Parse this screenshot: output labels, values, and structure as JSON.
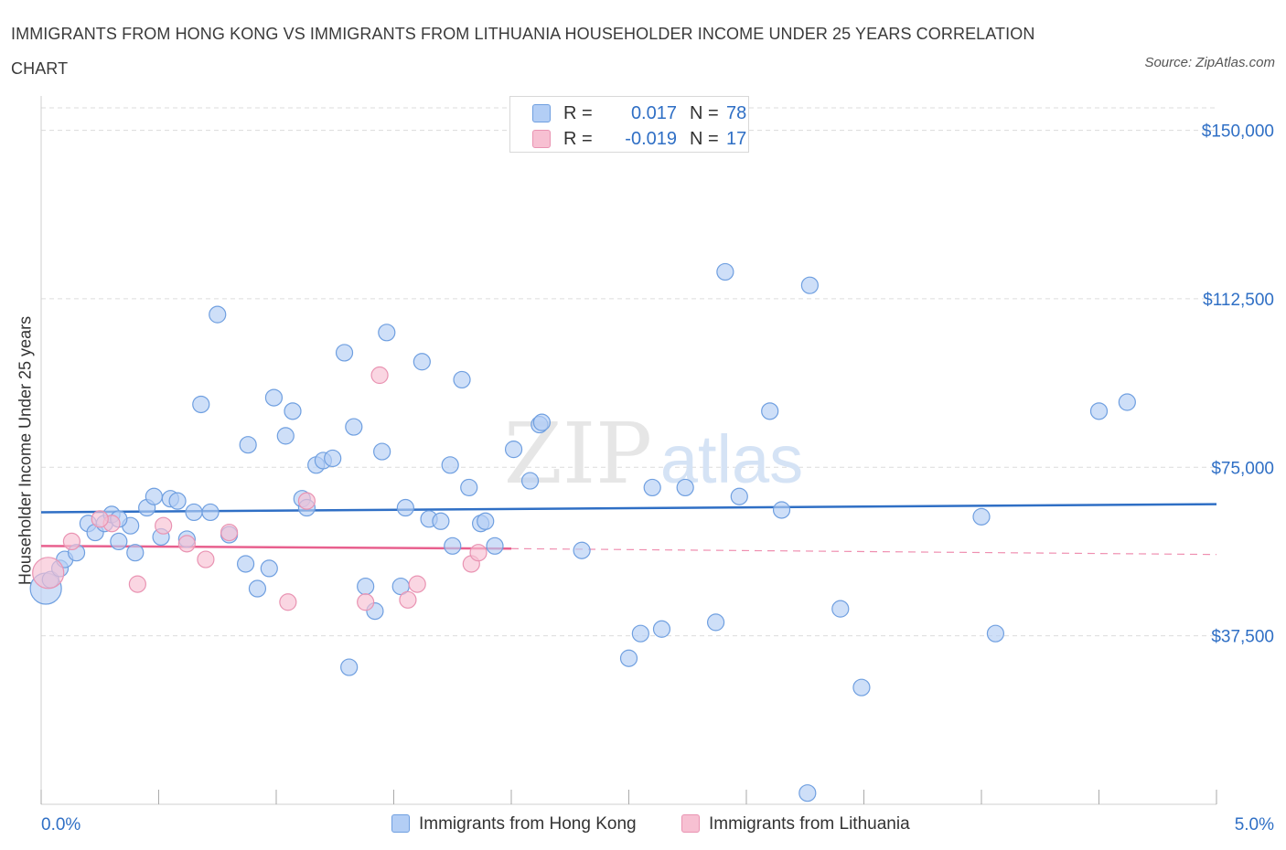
{
  "title": "IMMIGRANTS FROM HONG KONG VS IMMIGRANTS FROM LITHUANIA HOUSEHOLDER INCOME UNDER 25 YEARS CORRELATION CHART",
  "source": "Source: ZipAtlas.com",
  "watermark": {
    "zip": "ZIP",
    "atlas": "atlas"
  },
  "legend": {
    "hk": {
      "r_label": "R =",
      "r_value": "0.017",
      "n_label": "N =",
      "n_value": "78"
    },
    "lt": {
      "r_label": "R =",
      "r_value": "-0.019",
      "n_label": "N =",
      "n_value": "17"
    }
  },
  "colors": {
    "hk_fill": "#b3cef5",
    "hk_stroke": "#6f9fe0",
    "hk_line": "#2f6fc5",
    "lt_fill": "#f7c0d2",
    "lt_stroke": "#e993b2",
    "lt_line": "#e8608e",
    "axis_text": "#2f6fc5",
    "grid": "#dcdcdc"
  },
  "chart_data": {
    "type": "scatter",
    "title": "IMMIGRANTS FROM HONG KONG VS IMMIGRANTS FROM LITHUANIA HOUSEHOLDER INCOME UNDER 25 YEARS CORRELATION CHART",
    "xlabel": "",
    "ylabel": "Householder Income Under 25 years",
    "xlim": [
      0,
      5
    ],
    "ylim": [
      0,
      155000
    ],
    "x_tick_labels": [
      "0.0%",
      "5.0%"
    ],
    "y_ticks": [
      37500,
      75000,
      112500,
      150000
    ],
    "y_tick_labels": [
      "$37,500",
      "$75,000",
      "$112,500",
      "$150,000"
    ],
    "grid": true,
    "series": [
      {
        "name": "Immigrants from Hong Kong",
        "trend": [
          [
            0,
            65000
          ],
          [
            5,
            66800
          ]
        ],
        "points": [
          [
            0.02,
            48000,
            2
          ],
          [
            0.04,
            50000,
            1
          ],
          [
            0.08,
            52500,
            1
          ],
          [
            0.1,
            54500,
            1
          ],
          [
            0.15,
            56000,
            1
          ],
          [
            0.2,
            62500,
            1
          ],
          [
            0.23,
            60500,
            1
          ],
          [
            0.27,
            62500,
            1
          ],
          [
            0.3,
            64500,
            1
          ],
          [
            0.33,
            58500,
            1
          ],
          [
            0.38,
            62000,
            1
          ],
          [
            0.4,
            56000,
            1
          ],
          [
            0.45,
            66000,
            1
          ],
          [
            0.48,
            68500,
            1
          ],
          [
            0.51,
            59500,
            1
          ],
          [
            0.55,
            68000,
            1
          ],
          [
            0.58,
            67500,
            1
          ],
          [
            0.62,
            59000,
            1
          ],
          [
            0.65,
            65000,
            1
          ],
          [
            0.68,
            89000,
            1
          ],
          [
            0.72,
            65000,
            1
          ],
          [
            0.75,
            109000,
            1
          ],
          [
            0.8,
            60000,
            1
          ],
          [
            0.87,
            53500,
            1
          ],
          [
            0.88,
            80000,
            1
          ],
          [
            0.92,
            48000,
            1
          ],
          [
            0.97,
            52500,
            1
          ],
          [
            0.99,
            90500,
            1
          ],
          [
            1.04,
            82000,
            1
          ],
          [
            1.07,
            87500,
            1
          ],
          [
            1.11,
            68000,
            1
          ],
          [
            1.13,
            66000,
            1
          ],
          [
            1.17,
            75500,
            1
          ],
          [
            1.2,
            76500,
            1
          ],
          [
            1.24,
            77000,
            1
          ],
          [
            1.29,
            100500,
            1
          ],
          [
            1.33,
            84000,
            1
          ],
          [
            1.38,
            48500,
            1
          ],
          [
            1.42,
            43000,
            1
          ],
          [
            1.45,
            78500,
            1
          ],
          [
            1.47,
            105000,
            1
          ],
          [
            1.53,
            48500,
            1
          ],
          [
            1.55,
            66000,
            1
          ],
          [
            1.62,
            98500,
            1
          ],
          [
            1.65,
            63500,
            1
          ],
          [
            1.7,
            63000,
            1
          ],
          [
            1.74,
            75500,
            1
          ],
          [
            1.75,
            57500,
            1
          ],
          [
            1.79,
            94500,
            1
          ],
          [
            1.82,
            70500,
            1
          ],
          [
            1.87,
            62500,
            1
          ],
          [
            1.89,
            63000,
            1
          ],
          [
            1.93,
            57500,
            1
          ],
          [
            2.01,
            79000,
            1
          ],
          [
            2.08,
            72000,
            1
          ],
          [
            2.12,
            84500,
            1
          ],
          [
            2.13,
            85000,
            1
          ],
          [
            2.3,
            56500,
            1
          ],
          [
            2.5,
            32500,
            1
          ],
          [
            2.55,
            38000,
            1
          ],
          [
            2.6,
            70500,
            1
          ],
          [
            2.64,
            39000,
            1
          ],
          [
            2.74,
            70500,
            1
          ],
          [
            2.87,
            40500,
            1
          ],
          [
            2.91,
            118500,
            1
          ],
          [
            2.97,
            68500,
            1
          ],
          [
            3.1,
            87500,
            1
          ],
          [
            3.15,
            65500,
            1
          ],
          [
            3.26,
            2500,
            1
          ],
          [
            3.27,
            115500,
            1
          ],
          [
            3.4,
            43500,
            1
          ],
          [
            3.49,
            26000,
            1
          ],
          [
            4.0,
            64000,
            1
          ],
          [
            4.06,
            38000,
            1
          ],
          [
            4.5,
            87500,
            1
          ],
          [
            4.62,
            89500,
            1
          ],
          [
            1.31,
            30500,
            1
          ],
          [
            0.33,
            63500,
            1
          ]
        ]
      },
      {
        "name": "Immigrants from Lithuania",
        "trend": [
          [
            0,
            57500
          ],
          [
            2.0,
            56900
          ]
        ],
        "trend_extension": [
          [
            2.0,
            56900
          ],
          [
            5,
            55600
          ]
        ],
        "points": [
          [
            0.03,
            51500,
            2
          ],
          [
            0.13,
            58500,
            1
          ],
          [
            0.3,
            62500,
            1
          ],
          [
            0.41,
            49000,
            1
          ],
          [
            0.52,
            62000,
            1
          ],
          [
            0.62,
            58000,
            1
          ],
          [
            0.7,
            54500,
            1
          ],
          [
            0.8,
            60500,
            1
          ],
          [
            1.05,
            45000,
            1
          ],
          [
            1.13,
            67500,
            1
          ],
          [
            1.38,
            45000,
            1
          ],
          [
            1.44,
            95500,
            1
          ],
          [
            1.56,
            45500,
            1
          ],
          [
            1.6,
            49000,
            1
          ],
          [
            1.83,
            53500,
            1
          ],
          [
            1.86,
            56000,
            1
          ],
          [
            0.25,
            63500,
            1
          ]
        ]
      }
    ]
  }
}
